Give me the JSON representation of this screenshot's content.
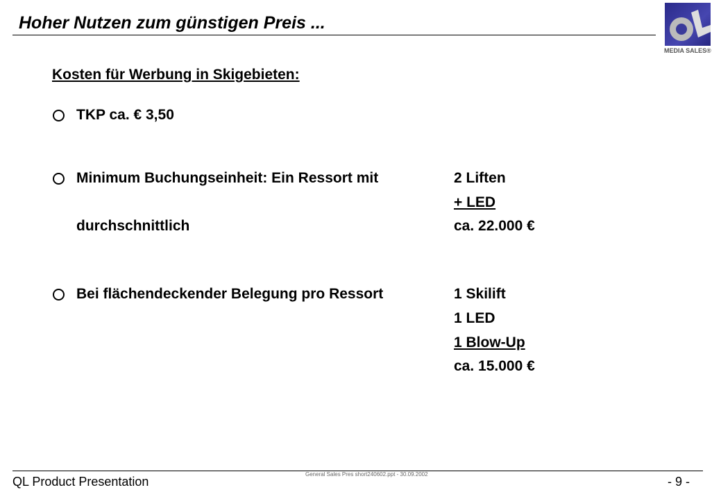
{
  "header": {
    "title": "Hoher Nutzen zum günstigen Preis ...",
    "logo_text": "MEDIA SALES®",
    "logo_letters": "QL"
  },
  "content": {
    "heading": "Kosten für Werbung in Skigebieten:",
    "bullets": [
      {
        "icon": "circle-bullet-icon",
        "lines": [
          {
            "left": "TKP ca. € 3,50",
            "right": ""
          }
        ]
      },
      {
        "icon": "circle-bullet-icon",
        "lines": [
          {
            "left": "Minimum Buchungseinheit: Ein Ressort mit",
            "right": "2 Liften"
          },
          {
            "left": "",
            "right": "+ LED"
          },
          {
            "left": "durchschnittlich",
            "right": "ca. 22.000 €"
          }
        ]
      },
      {
        "icon": "circle-bullet-icon",
        "lines": [
          {
            "left": "Bei flächendeckender Belegung pro Ressort",
            "right": "1 Skilift"
          },
          {
            "left": "",
            "right": "1 LED"
          },
          {
            "left": "",
            "right": "1 Blow-Up"
          },
          {
            "left": "",
            "right": "ca. 15.000 €"
          }
        ]
      }
    ]
  },
  "footer": {
    "left": "QL Product Presentation",
    "center": "General Sales Pres short240602.ppt - 30.09.2002",
    "page": "- 9 -"
  }
}
